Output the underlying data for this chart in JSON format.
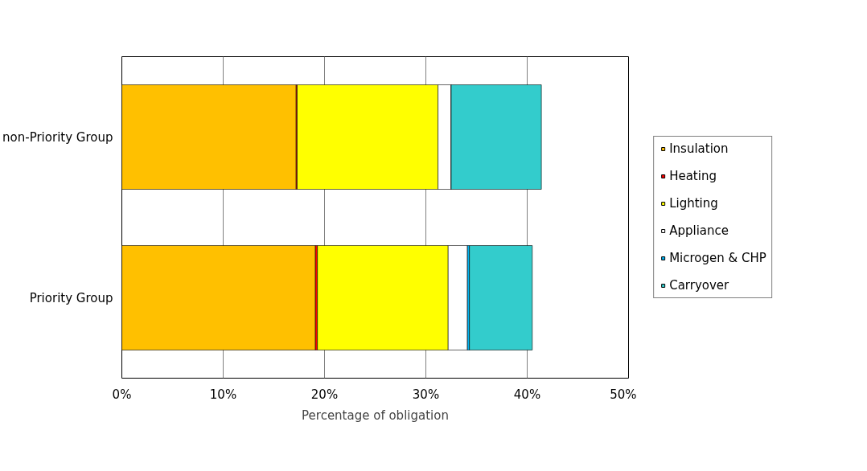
{
  "chart_data": {
    "type": "bar",
    "orientation": "horizontal",
    "stacked": true,
    "xlabel": "Percentage of obligation",
    "categories": [
      "non-Priority Group",
      "Priority Group"
    ],
    "series": [
      {
        "name": "Insulation",
        "color": "#ffc000",
        "values": [
          17.2,
          19.1
        ]
      },
      {
        "name": "Heating",
        "color": "#ff0000",
        "values": [
          0.1,
          0.2
        ]
      },
      {
        "name": "Lighting",
        "color": "#ffff00",
        "values": [
          13.9,
          12.9
        ]
      },
      {
        "name": "Appliance",
        "color": "#ffffff",
        "values": [
          1.3,
          1.9
        ]
      },
      {
        "name": "Microgen & CHP",
        "color": "#00b0f0",
        "values": [
          0,
          0.2
        ]
      },
      {
        "name": "Carryover",
        "color": "#33cccc",
        "values": [
          8.9,
          6.2
        ]
      }
    ],
    "xlim": [
      0,
      50
    ],
    "xticks": [
      {
        "value": 0,
        "label": "0%"
      },
      {
        "value": 10,
        "label": "10%"
      },
      {
        "value": 20,
        "label": "20%"
      },
      {
        "value": 30,
        "label": "30%"
      },
      {
        "value": 40,
        "label": "40%"
      },
      {
        "value": 50,
        "label": "50%"
      }
    ],
    "grid": "x",
    "legend": "right"
  }
}
